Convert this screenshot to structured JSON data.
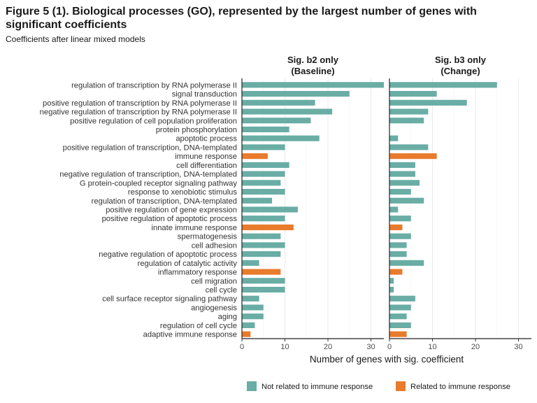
{
  "title": "Figure 5 (1). Biological processes (GO), represented by the largest number of genes with significant coefficients",
  "subtitle": "Coefficients after linear mixed models",
  "chart_data": {
    "type": "bar",
    "orientation": "horizontal",
    "xlabel": "Number of genes with sig. coefficient",
    "xlim": [
      0,
      33
    ],
    "xticks": [
      0,
      10,
      20,
      30
    ],
    "grid": true,
    "legend_position": "bottom",
    "colors": {
      "not_immune": "#69ada5",
      "immune": "#e87b2c"
    },
    "legend": [
      {
        "key": "not_immune",
        "label": "Not related to immune response"
      },
      {
        "key": "immune",
        "label": "Related to immune response"
      }
    ],
    "categories": [
      "regulation of transcription by RNA polymerase II",
      "signal transduction",
      "positive regulation of transcription by RNA polymerase II",
      "negative regulation of transcription by RNA polymerase II",
      "positive regulation of cell population proliferation",
      "protein phosphorylation",
      "apoptotic process",
      "positive regulation of transcription, DNA-templated",
      "immune response",
      "cell differentiation",
      "negative regulation of transcription, DNA-templated",
      "G protein-coupled receptor signaling pathway",
      "response to xenobiotic stimulus",
      "regulation of transcription, DNA-templated",
      "positive regulation of gene expression",
      "positive regulation of apoptotic process",
      "innate immune response",
      "spermatogenesis",
      "cell adhesion",
      "negative regulation of apoptotic process",
      "regulation of catalytic activity",
      "inflammatory response",
      "cell migration",
      "cell cycle",
      "cell surface receptor signaling pathway",
      "angiogenesis",
      "aging",
      "regulation of cell cycle",
      "adaptive immune response"
    ],
    "immune_related": [
      false,
      false,
      false,
      false,
      false,
      false,
      false,
      false,
      true,
      false,
      false,
      false,
      false,
      false,
      false,
      false,
      true,
      false,
      false,
      false,
      false,
      true,
      false,
      false,
      false,
      false,
      false,
      false,
      true
    ],
    "panels": [
      {
        "title_line1": "Sig. b2 only",
        "title_line2": "(Baseline)",
        "values": [
          33,
          25,
          17,
          21,
          16,
          11,
          18,
          10,
          6,
          11,
          10,
          9,
          10,
          7,
          13,
          10,
          12,
          9,
          10,
          9,
          4,
          9,
          10,
          10,
          4,
          5,
          5,
          3,
          2
        ]
      },
      {
        "title_line1": "Sig. b3 only",
        "title_line2": "(Change)",
        "values": [
          25,
          11,
          18,
          9,
          8,
          0,
          2,
          9,
          11,
          6,
          6,
          7,
          5,
          8,
          2,
          5,
          3,
          5,
          4,
          4,
          8,
          3,
          1,
          1,
          6,
          5,
          4,
          5,
          4
        ]
      }
    ]
  }
}
